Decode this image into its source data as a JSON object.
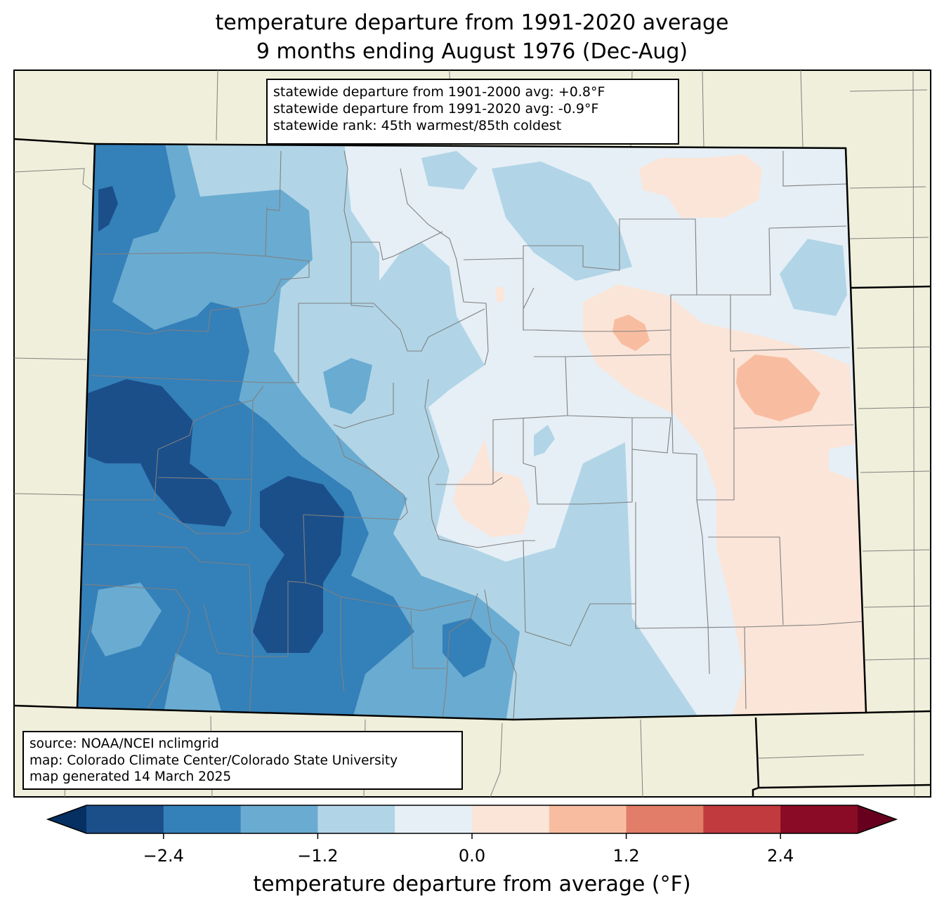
{
  "title": {
    "line1": "temperature departure from 1991-2020 average",
    "line2": "9 months ending August 1976 (Dec-Aug)"
  },
  "stats": {
    "line1": "statewide departure from 1901-2000 avg: +0.8°F",
    "line2": "statewide departure from 1991-2020 avg: -0.9°F",
    "line3": "statewide rank: 45th warmest/85th coldest"
  },
  "source": {
    "line1": "source: NOAA/NCEI nclimgrid",
    "line2": "map: Colorado Climate Center/Colorado State University",
    "line3": "map generated 14 March 2025"
  },
  "colorbar": {
    "label": "temperature departure from average (°F)",
    "ticks": [
      "−2.4",
      "−1.2",
      "0.0",
      "1.2",
      "2.4"
    ],
    "tick_values": [
      -2.4,
      -1.2,
      0.0,
      1.2,
      2.4
    ],
    "boundaries": [
      -3.0,
      -2.4,
      -1.8,
      -1.2,
      -0.6,
      0.0,
      0.6,
      1.2,
      1.8,
      2.4,
      3.0
    ],
    "colors": [
      "#053061",
      "#1b4f8a",
      "#3480b9",
      "#6aabd1",
      "#b1d5e7",
      "#e6eff6",
      "#fbe5d8",
      "#f8bda1",
      "#e17d68",
      "#c13a3e",
      "#8a0b25",
      "#67001f"
    ]
  },
  "colors": {
    "land": "#efefdb",
    "county_lines": "#808080",
    "state_lines": "#000000"
  }
}
